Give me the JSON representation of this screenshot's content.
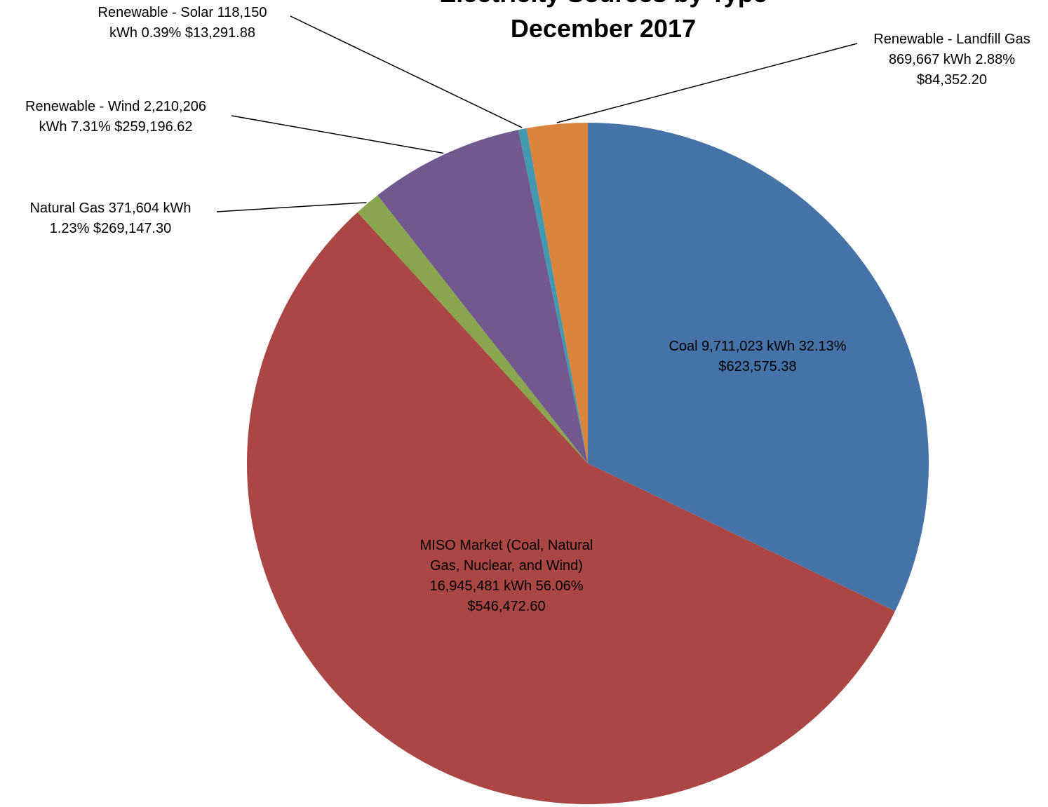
{
  "chart_data": {
    "type": "pie",
    "title_lines": [
      "Electricity Sources by Type",
      "December 2017"
    ],
    "slices": [
      {
        "name": "Coal",
        "kwh": 9711023,
        "percent": 32.13,
        "cost": 623575.38,
        "color": "#4572A7",
        "label_lines": [
          "Coal  9,711,023  kWh 32.13%",
          "$623,575.38"
        ]
      },
      {
        "name": "MISO Market (Coal, Natural Gas, Nuclear, and Wind)",
        "kwh": 16945481,
        "percent": 56.06,
        "cost": 546472.6,
        "color": "#AA4643",
        "label_lines": [
          "MISO Market (Coal, Natural",
          "Gas, Nuclear, and Wind)",
          "16,945,481  kWh 56.06%",
          "$546,472.60"
        ]
      },
      {
        "name": "Natural Gas",
        "kwh": 371604,
        "percent": 1.23,
        "cost": 269147.3,
        "color": "#89A54E",
        "label_lines": [
          "Natural Gas  371,604  kWh",
          "1.23%  $269,147.30"
        ]
      },
      {
        "name": "Renewable - Wind",
        "kwh": 2210206,
        "percent": 7.31,
        "cost": 259196.62,
        "color": "#71588F",
        "label_lines": [
          "Renewable - Wind  2,210,206",
          "kWh 7.31%  $259,196.62"
        ]
      },
      {
        "name": "Renewable - Solar",
        "kwh": 118150,
        "percent": 0.39,
        "cost": 13291.88,
        "color": "#4198AF",
        "label_lines": [
          "Renewable - Solar  118,150",
          "kWh 0.39%  $13,291.88"
        ]
      },
      {
        "name": "Renewable - Landfill Gas",
        "kwh": 869667,
        "percent": 2.88,
        "cost": 84352.2,
        "color": "#DB843D",
        "label_lines": [
          "Renewable - Landfill Gas",
          "869,667  kWh 2.88%",
          "$84,352.20"
        ]
      }
    ]
  }
}
